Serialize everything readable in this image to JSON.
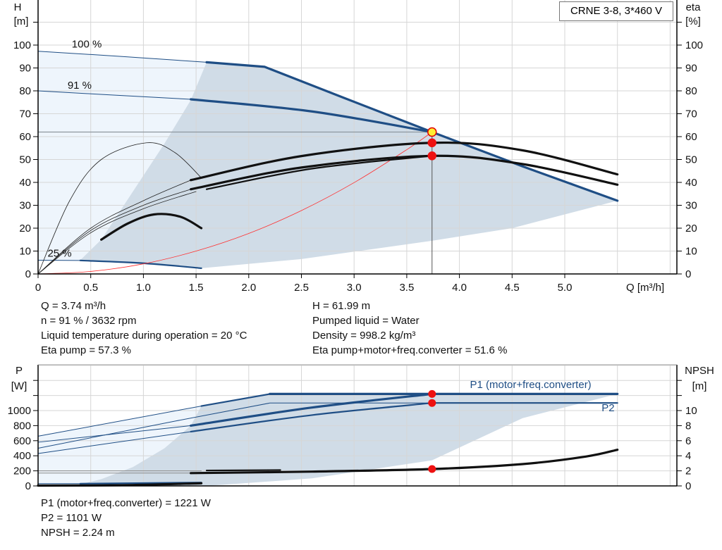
{
  "chart_data": [
    {
      "type": "line",
      "title": "CRNE 3-8, 3*460 V",
      "xlabel": "Q [m³/h]",
      "ylabel_left": [
        "H",
        "[m]"
      ],
      "ylabel_right": [
        "eta",
        "[%]"
      ],
      "xlim": [
        0,
        6.06
      ],
      "ylim": [
        0,
        120
      ],
      "grid": true,
      "x_ticks": [
        "0",
        "0.5",
        "1.0",
        "1.5",
        "2.0",
        "2.5",
        "3.0",
        "3.5",
        "4.0",
        "4.5",
        "5.0"
      ],
      "y_ticks": [
        "0",
        "10",
        "20",
        "30",
        "40",
        "50",
        "60",
        "70",
        "80",
        "90",
        "100"
      ],
      "curve_labels": [
        {
          "text": "100 %",
          "x": 0.32,
          "y": 99
        },
        {
          "text": "91 %",
          "x": 0.28,
          "y": 81
        },
        {
          "text": "25 %",
          "x": 0.09,
          "y": 7.5
        }
      ],
      "regions": [
        {
          "shade": "#eef5fc",
          "points": [
            [
              0,
              97.3
            ],
            [
              1.6,
              92.5
            ],
            [
              1.45,
              76
            ],
            [
              1.2,
              57
            ],
            [
              0.9,
              36
            ],
            [
              0.6,
              15
            ],
            [
              0.4,
              6
            ],
            [
              0,
              6
            ]
          ]
        },
        {
          "shade": "#d0dce7",
          "points": [
            [
              1.6,
              92.5
            ],
            [
              2.15,
              90.5
            ],
            [
              3.74,
              62
            ],
            [
              5.5,
              32
            ],
            [
              4.5,
              20
            ],
            [
              3.74,
              14.5
            ],
            [
              2.5,
              6.5
            ],
            [
              1.55,
              2.5
            ],
            [
              0.4,
              6
            ],
            [
              0.6,
              15
            ],
            [
              0.9,
              36
            ],
            [
              1.2,
              57
            ],
            [
              1.45,
              76
            ]
          ]
        }
      ],
      "series": [
        {
          "axis": "H",
          "color": "#1f4e85",
          "weight": "thin",
          "points": [
            [
              0,
              97.3
            ],
            [
              0.8,
              95
            ],
            [
              1.6,
              92.5
            ]
          ]
        },
        {
          "axis": "H",
          "color": "#1f4e85",
          "weight": "thick",
          "points": [
            [
              1.6,
              92.5
            ],
            [
              2.15,
              90.5
            ],
            [
              2.9,
              77
            ],
            [
              3.74,
              62
            ],
            [
              4.6,
              47
            ],
            [
              5.5,
              32
            ]
          ],
          "smooth": false
        },
        {
          "axis": "H",
          "color": "#1f4e85",
          "weight": "thin",
          "points": [
            [
              0,
              80
            ],
            [
              0.7,
              78.2
            ],
            [
              1.45,
              76.3
            ]
          ]
        },
        {
          "axis": "H",
          "color": "#1f4e85",
          "weight": "thick",
          "points": [
            [
              1.45,
              76.3
            ],
            [
              2.6,
              71
            ],
            [
              3.74,
              62
            ]
          ]
        },
        {
          "axis": "H",
          "color": "#1f4e85",
          "weight": "thin",
          "points": [
            [
              0,
              6
            ],
            [
              0.4,
              5.9
            ]
          ]
        },
        {
          "axis": "H",
          "color": "#1f4e85",
          "weight": "medium",
          "points": [
            [
              0.4,
              5.9
            ],
            [
              1.0,
              4.7
            ],
            [
              1.55,
              2.5
            ]
          ]
        },
        {
          "axis": "H",
          "color": "#ff3030",
          "weight": "hair",
          "points": [
            [
              0,
              0
            ],
            [
              0.5,
              1.1
            ],
            [
              1.0,
              4.4
            ],
            [
              1.5,
              10
            ],
            [
              2.0,
              17.7
            ],
            [
              2.5,
              27.7
            ],
            [
              3.0,
              39.9
            ],
            [
              3.5,
              54.3
            ],
            [
              3.74,
              62
            ]
          ]
        },
        {
          "axis": "eta",
          "color": "#222",
          "weight": "hair",
          "points": [
            [
              0,
              0
            ],
            [
              0.3,
              32
            ],
            [
              0.6,
              50
            ],
            [
              1.03,
              57.3
            ],
            [
              1.3,
              53
            ],
            [
              1.55,
              42
            ]
          ]
        },
        {
          "axis": "eta",
          "color": "#111",
          "weight": "thick",
          "points": [
            [
              0.6,
              15
            ],
            [
              0.85,
              22
            ],
            [
              1.1,
              26
            ],
            [
              1.35,
              25
            ],
            [
              1.55,
              20
            ]
          ]
        },
        {
          "axis": "eta",
          "color": "#222",
          "weight": "hair",
          "points": [
            [
              0,
              0
            ],
            [
              0.5,
              20
            ],
            [
              1.0,
              32
            ],
            [
              1.45,
              41
            ]
          ]
        },
        {
          "axis": "eta",
          "color": "#222",
          "weight": "hair",
          "points": [
            [
              0,
              0
            ],
            [
              0.5,
              19
            ],
            [
              1.0,
              30
            ],
            [
              1.45,
              37
            ]
          ]
        },
        {
          "axis": "eta",
          "color": "#222",
          "weight": "hair",
          "points": [
            [
              0,
              0
            ],
            [
              0.5,
              18
            ],
            [
              1.0,
              28.5
            ],
            [
              1.5,
              36
            ]
          ]
        },
        {
          "axis": "eta",
          "color": "#111",
          "weight": "thick",
          "points": [
            [
              1.45,
              41
            ],
            [
              2.5,
              51.5
            ],
            [
              3.74,
              57.3
            ],
            [
              4.6,
              54
            ],
            [
              5.5,
              43.5
            ]
          ]
        },
        {
          "axis": "eta",
          "color": "#111",
          "weight": "thick",
          "points": [
            [
              1.45,
              37
            ],
            [
              2.5,
              46.5
            ],
            [
              3.74,
              51.6
            ],
            [
              4.6,
              48
            ],
            [
              5.5,
              39
            ]
          ]
        },
        {
          "axis": "eta",
          "color": "#111",
          "weight": "medium",
          "points": [
            [
              1.6,
              37
            ],
            [
              2.6,
              46
            ],
            [
              3.74,
              51.6
            ]
          ]
        }
      ],
      "duty_lines": {
        "Q": 3.74,
        "H": 61.99
      },
      "markers": [
        {
          "axis": "H",
          "x": 3.74,
          "y": 61.99,
          "fill": "#ffee33",
          "stroke": "#e00000"
        },
        {
          "axis": "eta",
          "x": 3.74,
          "y": 57.3,
          "fill": "#ee1111",
          "stroke": "#ee1111"
        },
        {
          "axis": "eta",
          "x": 3.74,
          "y": 51.6,
          "fill": "#ee1111",
          "stroke": "#ee1111"
        }
      ]
    },
    {
      "type": "line",
      "ylabel_left": [
        "P",
        "[W]"
      ],
      "ylabel_right": [
        "NPSH",
        "[m]"
      ],
      "xlim": [
        0,
        6.06
      ],
      "ylim_left": [
        0,
        1600
      ],
      "ylim_right": [
        0,
        16
      ],
      "grid": true,
      "y_ticks_left": [
        "0",
        "200",
        "400",
        "600",
        "800",
        "1000"
      ],
      "y_ticks_right": [
        "0",
        "2",
        "4",
        "6",
        "8",
        "10"
      ],
      "series_labels": [
        {
          "text": "P1 (motor+freq.converter)",
          "x": 4.1,
          "y": 1300
        },
        {
          "text": "P2",
          "x": 5.35,
          "y": 990
        }
      ],
      "regions": [
        {
          "shade": "#eef5fc",
          "points": [
            [
              0,
              660
            ],
            [
              1.55,
              1060
            ],
            [
              1.45,
              800
            ],
            [
              1.2,
              500
            ],
            [
              0.9,
              250
            ],
            [
              0.6,
              90
            ],
            [
              0.34,
              0
            ],
            [
              0,
              0
            ]
          ]
        },
        {
          "shade": "#d0dce7",
          "points": [
            [
              1.55,
              1060
            ],
            [
              2.2,
              1220
            ],
            [
              5.5,
              1221
            ],
            [
              4.6,
              900
            ],
            [
              3.74,
              340
            ],
            [
              2.6,
              100
            ],
            [
              1.6,
              0
            ],
            [
              0.34,
              0
            ],
            [
              0.6,
              90
            ],
            [
              0.9,
              250
            ],
            [
              1.2,
              500
            ],
            [
              1.45,
              800
            ]
          ]
        }
      ],
      "series": [
        {
          "axis": "P",
          "color": "#1f4e85",
          "weight": "thin",
          "points": [
            [
              0,
              660
            ],
            [
              1.55,
              1060
            ]
          ]
        },
        {
          "axis": "P",
          "color": "#1f4e85",
          "weight": "medium",
          "points": [
            [
              1.55,
              1060
            ],
            [
              2.2,
              1220
            ]
          ],
          "smooth": false
        },
        {
          "axis": "P",
          "color": "#1f4e85",
          "weight": "thick",
          "points": [
            [
              2.2,
              1221
            ],
            [
              5.5,
              1221
            ]
          ]
        },
        {
          "axis": "P",
          "color": "#1f4e85",
          "weight": "thin",
          "points": [
            [
              0,
              580
            ],
            [
              1.45,
              800
            ]
          ]
        },
        {
          "axis": "P",
          "color": "#1f4e85",
          "weight": "thick",
          "points": [
            [
              1.45,
              800
            ],
            [
              2.6,
              1040
            ],
            [
              3.74,
              1221
            ]
          ]
        },
        {
          "axis": "P",
          "color": "#1f4e85",
          "weight": "thin",
          "points": [
            [
              0,
              500
            ],
            [
              1.3,
              860
            ],
            [
              2.2,
              1100
            ],
            [
              3.74,
              1101
            ]
          ],
          "smooth": false
        },
        {
          "axis": "P",
          "color": "#1f4e85",
          "weight": "medium",
          "points": [
            [
              3.74,
              1101
            ],
            [
              5.5,
              1101
            ]
          ]
        },
        {
          "axis": "P",
          "color": "#1f4e85",
          "weight": "thin",
          "points": [
            [
              0,
              430
            ],
            [
              1.45,
              720
            ]
          ]
        },
        {
          "axis": "P",
          "color": "#1f4e85",
          "weight": "medium",
          "points": [
            [
              1.45,
              720
            ],
            [
              2.6,
              940
            ],
            [
              3.74,
              1101
            ]
          ]
        },
        {
          "axis": "P",
          "color": "#1f4e85",
          "weight": "thin",
          "points": [
            [
              0,
              30
            ],
            [
              0.4,
              30
            ]
          ]
        },
        {
          "axis": "P",
          "color": "#1f4e85",
          "weight": "medium",
          "points": [
            [
              0.4,
              30
            ],
            [
              1.55,
              45
            ]
          ]
        },
        {
          "axis": "NPSH",
          "color": "#888",
          "weight": "thin",
          "points": [
            [
              0,
              2.0
            ],
            [
              1.55,
              2.0
            ]
          ]
        },
        {
          "axis": "NPSH",
          "color": "#888",
          "weight": "thin",
          "points": [
            [
              0,
              1.7
            ],
            [
              1.45,
              1.7
            ]
          ]
        },
        {
          "axis": "NPSH",
          "color": "#111",
          "weight": "medium",
          "points": [
            [
              1.6,
              2.05
            ],
            [
              2.3,
              2.1
            ]
          ]
        },
        {
          "axis": "NPSH",
          "color": "#111",
          "weight": "thick",
          "points": [
            [
              1.45,
              1.7
            ],
            [
              2.6,
              1.9
            ],
            [
              3.74,
              2.24
            ],
            [
              4.6,
              2.9
            ],
            [
              5.2,
              3.9
            ],
            [
              5.5,
              4.8
            ]
          ]
        },
        {
          "axis": "NPSH",
          "color": "#111",
          "weight": "thick",
          "points": [
            [
              0,
              0.05
            ],
            [
              0.8,
              0.1
            ],
            [
              1.55,
              0.35
            ]
          ]
        }
      ],
      "markers": [
        {
          "axis": "P",
          "x": 3.74,
          "y": 1221,
          "fill": "#ee1111",
          "stroke": "#ee1111"
        },
        {
          "axis": "P",
          "x": 3.74,
          "y": 1101,
          "fill": "#ee1111",
          "stroke": "#ee1111"
        },
        {
          "axis": "NPSH",
          "x": 3.74,
          "y": 2.24,
          "fill": "#ee1111",
          "stroke": "#ee1111"
        }
      ]
    }
  ],
  "info_top": {
    "left": [
      "Q = 3.74 m³/h",
      "n = 91 % / 3632 rpm",
      "Liquid temperature during operation = 20 °C",
      "Eta pump = 57.3 %"
    ],
    "right": [
      "H = 61.99 m",
      "Pumped liquid = Water",
      "Density = 998.2 kg/m³",
      "Eta pump+motor+freq.converter = 51.6 %"
    ]
  },
  "info_bottom": [
    "P1 (motor+freq.converter) = 1221 W",
    "P2 = 1101 W",
    "NPSH = 2.24 m"
  ]
}
